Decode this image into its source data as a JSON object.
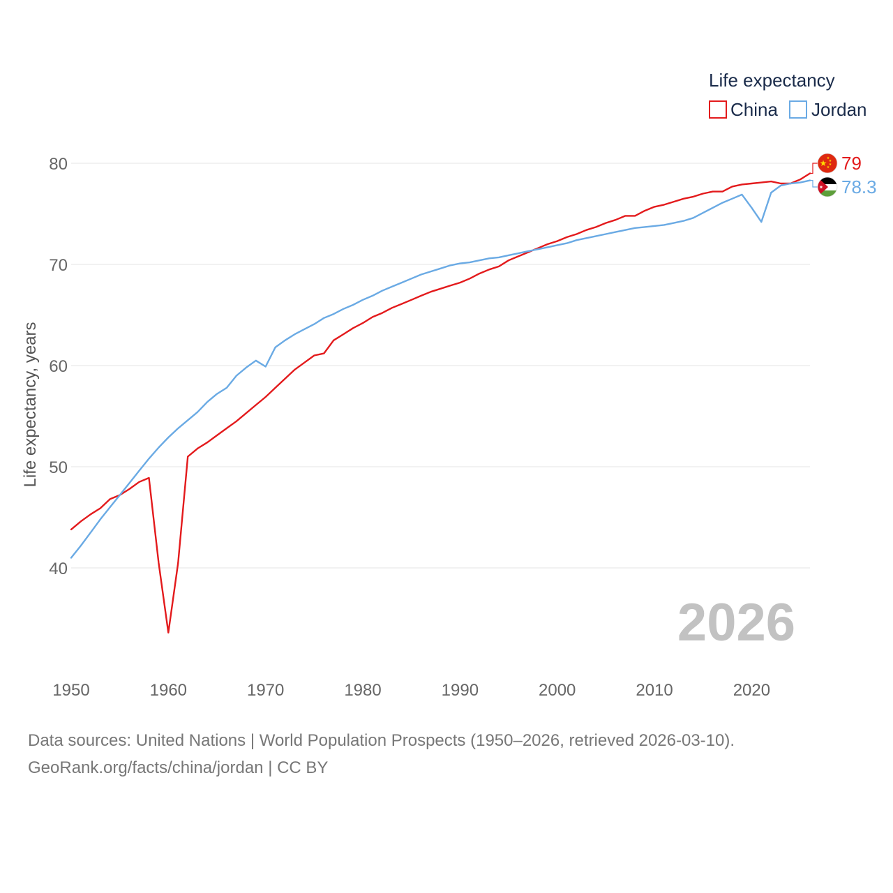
{
  "colors": {
    "china": "#e31a1c",
    "jordan": "#6aaae4",
    "grid": "#e6e6e6",
    "year": "#c2c2c2"
  },
  "chart_data": {
    "type": "line",
    "title": "",
    "xlabel": "",
    "ylabel": "Life expectancy, years",
    "xlim": [
      1950,
      2026
    ],
    "ylim": [
      33,
      82
    ],
    "x_ticks": [
      1950,
      1960,
      1970,
      1980,
      1990,
      2000,
      2010,
      2020
    ],
    "y_ticks": [
      40,
      50,
      60,
      70,
      80
    ],
    "legend": {
      "title": "Life expectancy",
      "position": "top-right"
    },
    "year_watermark": "2026",
    "x": [
      1950,
      1951,
      1952,
      1953,
      1954,
      1955,
      1956,
      1957,
      1958,
      1959,
      1960,
      1961,
      1962,
      1963,
      1964,
      1965,
      1966,
      1967,
      1968,
      1969,
      1970,
      1971,
      1972,
      1973,
      1974,
      1975,
      1976,
      1977,
      1978,
      1979,
      1980,
      1981,
      1982,
      1983,
      1984,
      1985,
      1986,
      1987,
      1988,
      1989,
      1990,
      1991,
      1992,
      1993,
      1994,
      1995,
      1996,
      1997,
      1998,
      1999,
      2000,
      2001,
      2002,
      2003,
      2004,
      2005,
      2006,
      2007,
      2008,
      2009,
      2010,
      2011,
      2012,
      2013,
      2014,
      2015,
      2016,
      2017,
      2018,
      2019,
      2020,
      2021,
      2022,
      2023,
      2024,
      2025,
      2026
    ],
    "series": [
      {
        "name": "China",
        "color": "#e31a1c",
        "end_label": "79",
        "flag": "china-flag",
        "values": [
          43.8,
          44.6,
          45.3,
          45.9,
          46.8,
          47.2,
          47.8,
          48.5,
          48.9,
          40.5,
          33.6,
          40.5,
          51.0,
          51.8,
          52.4,
          53.1,
          53.8,
          54.5,
          55.3,
          56.1,
          56.9,
          57.8,
          58.7,
          59.6,
          60.3,
          61.0,
          61.2,
          62.5,
          63.1,
          63.7,
          64.2,
          64.8,
          65.2,
          65.7,
          66.1,
          66.5,
          66.9,
          67.3,
          67.6,
          67.9,
          68.2,
          68.6,
          69.1,
          69.5,
          69.8,
          70.4,
          70.8,
          71.2,
          71.6,
          72.0,
          72.3,
          72.7,
          73.0,
          73.4,
          73.7,
          74.1,
          74.4,
          74.8,
          74.8,
          75.3,
          75.7,
          75.9,
          76.2,
          76.5,
          76.7,
          77.0,
          77.2,
          77.2,
          77.7,
          77.9,
          78.0,
          78.1,
          78.2,
          78.0,
          78.0,
          78.4,
          79.0
        ]
      },
      {
        "name": "Jordan",
        "color": "#6aaae4",
        "end_label": "78.3",
        "flag": "jordan-flag",
        "values": [
          41.0,
          42.2,
          43.5,
          44.8,
          46.0,
          47.2,
          48.4,
          49.6,
          50.8,
          51.9,
          52.9,
          53.8,
          54.6,
          55.4,
          56.4,
          57.2,
          57.8,
          59.0,
          59.8,
          60.5,
          59.9,
          61.8,
          62.5,
          63.1,
          63.6,
          64.1,
          64.7,
          65.1,
          65.6,
          66.0,
          66.5,
          66.9,
          67.4,
          67.8,
          68.2,
          68.6,
          69.0,
          69.3,
          69.6,
          69.9,
          70.1,
          70.2,
          70.4,
          70.6,
          70.7,
          70.9,
          71.1,
          71.3,
          71.5,
          71.7,
          71.9,
          72.1,
          72.4,
          72.6,
          72.8,
          73.0,
          73.2,
          73.4,
          73.6,
          73.7,
          73.8,
          73.9,
          74.1,
          74.3,
          74.6,
          75.1,
          75.6,
          76.1,
          76.5,
          76.9,
          75.6,
          74.2,
          77.1,
          77.8,
          78.0,
          78.1,
          78.3
        ]
      }
    ]
  },
  "footer": {
    "line1": "Data sources: United Nations | World Population Prospects (1950–2026, retrieved 2026-03-10).",
    "line2": "GeoRank.org/facts/china/jordan | CC BY"
  }
}
